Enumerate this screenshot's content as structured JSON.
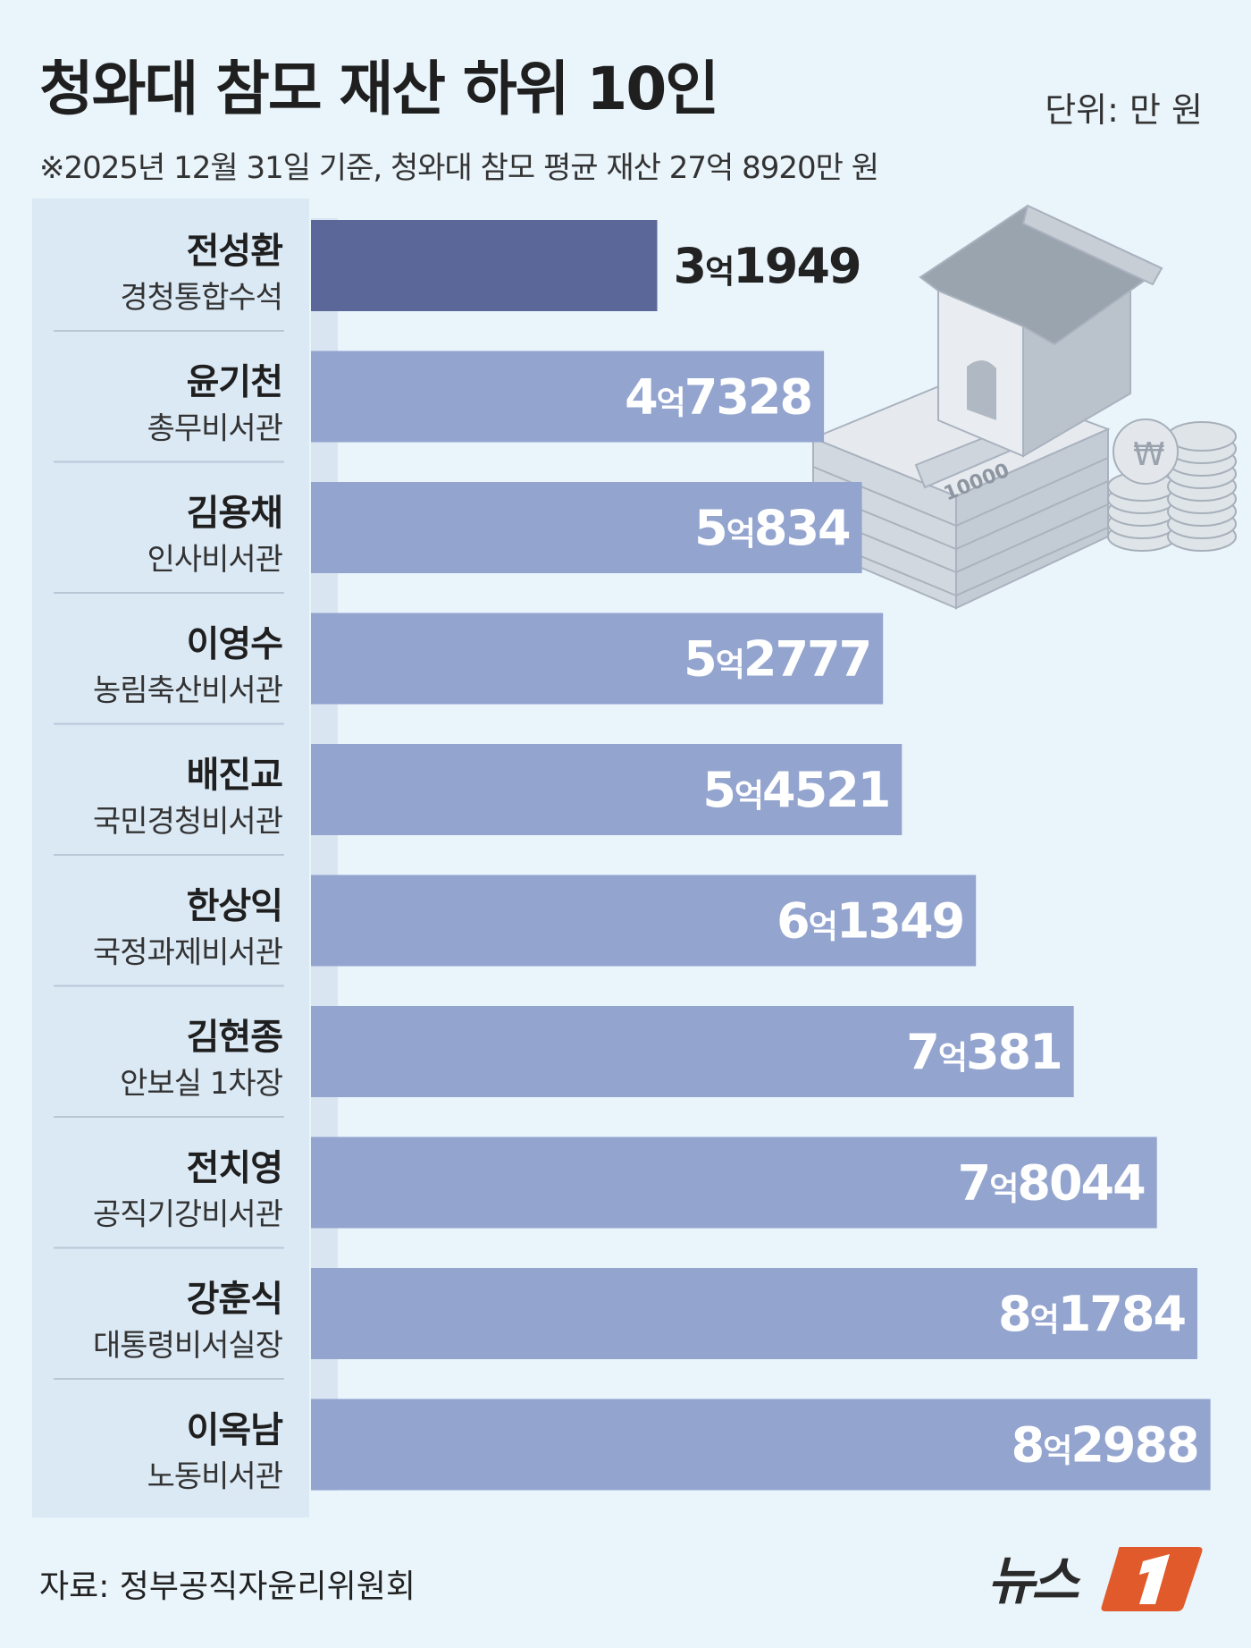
{
  "header": {
    "title": "청와대 참모 재산 하위 10인",
    "unit": "단위: 만 원",
    "subtitle": "※2025년 12월 31일 기준, 청와대 참모 평균 재산 27억 8920만 원"
  },
  "footer": {
    "source": "자료: 정부공직자윤리위원회",
    "logo_text": "뉴스1"
  },
  "illustration": {
    "icon": "house-on-money-icon",
    "banknote_text": "10000"
  },
  "colors": {
    "background": "#e9f4fb",
    "bar": "#93a4cf",
    "bar_highlight": "#5b6699",
    "label_panel": "#dbe9f5"
  },
  "chart_data": {
    "type": "bar",
    "orientation": "horizontal",
    "categories": [
      {
        "name": "전성환",
        "role": "경청통합수석"
      },
      {
        "name": "윤기천",
        "role": "총무비서관"
      },
      {
        "name": "김용채",
        "role": "인사비서관"
      },
      {
        "name": "이영수",
        "role": "농림축산비서관"
      },
      {
        "name": "배진교",
        "role": "국민경청비서관"
      },
      {
        "name": "한상익",
        "role": "국정과제비서관"
      },
      {
        "name": "김현종",
        "role": "안보실 1차장"
      },
      {
        "name": "전치영",
        "role": "공직기강비서관"
      },
      {
        "name": "강훈식",
        "role": "대통령비서실장"
      },
      {
        "name": "이옥남",
        "role": "노동비서관"
      }
    ],
    "values": [
      31949,
      47328,
      50834,
      52777,
      54521,
      61349,
      70381,
      78044,
      81784,
      82988
    ],
    "labels": [
      {
        "eok": "3",
        "man": "1949"
      },
      {
        "eok": "4",
        "man": "7328"
      },
      {
        "eok": "5",
        "man": "834"
      },
      {
        "eok": "5",
        "man": "2777"
      },
      {
        "eok": "5",
        "man": "4521"
      },
      {
        "eok": "6",
        "man": "1349"
      },
      {
        "eok": "7",
        "man": "381"
      },
      {
        "eok": "7",
        "man": "8044"
      },
      {
        "eok": "8",
        "man": "1784"
      },
      {
        "eok": "8",
        "man": "2988"
      }
    ],
    "eok_suffix": "억",
    "highlight_index": 0,
    "unit": "만 원"
  }
}
